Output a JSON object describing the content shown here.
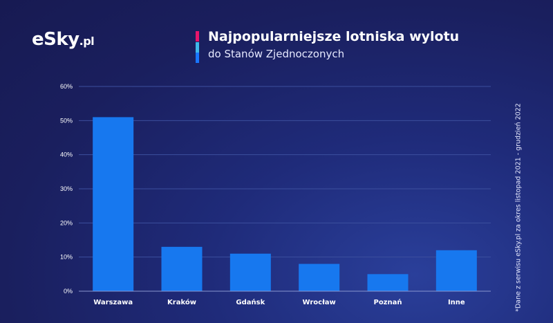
{
  "brand": {
    "logo_text": "eSky",
    "logo_suffix": ".pl"
  },
  "header": {
    "title": "Najpopularniejsze lotniska wylotu",
    "subtitle": "do Stanów Zjednoczonych",
    "accent_colors": [
      "#e8156b",
      "#3fb8ea",
      "#1976ff"
    ]
  },
  "source_note": "*Dane z serwisu eSky.pl za okres listopad 2021 - grudzień 2022",
  "colors": {
    "bar": "#1778ef",
    "gridline": "#3c4f9e",
    "axis": "#8a97d0"
  },
  "chart_data": {
    "type": "bar",
    "title": "Najpopularniejsze lotniska wylotu do Stanów Zjednoczonych",
    "categories": [
      "Warszawa",
      "Kraków",
      "Gdańsk",
      "Wrocław",
      "Poznań",
      "Inne"
    ],
    "values": [
      51,
      13,
      11,
      8,
      5,
      12
    ],
    "unit": "%",
    "ylim": [
      0,
      60
    ],
    "yticks": [
      0,
      10,
      20,
      30,
      40,
      50,
      60
    ],
    "ytick_labels": [
      "0%",
      "10%",
      "20%",
      "30%",
      "40%",
      "50%",
      "60%"
    ],
    "grid": true,
    "legend": "none"
  }
}
